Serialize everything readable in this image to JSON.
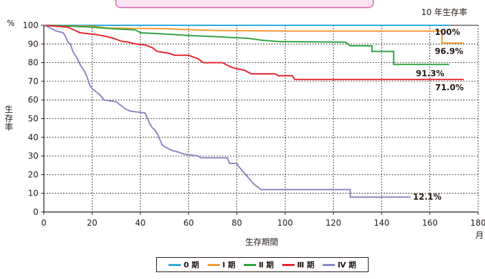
{
  "chart_data": {
    "type": "line",
    "title": "10 年生存率",
    "xlabel": "生存期間",
    "x_unit": "月",
    "ylabel": "生存率",
    "y_unit": "%",
    "xlim": [
      0,
      180
    ],
    "ylim": [
      0,
      100
    ],
    "x_ticks": [
      "0",
      "20",
      "40",
      "60",
      "80",
      "100",
      "120",
      "140",
      "160",
      "180"
    ],
    "y_ticks": [
      "0",
      "10",
      "20",
      "30",
      "40",
      "50",
      "60",
      "70",
      "80",
      "90",
      "100"
    ],
    "grid": true,
    "legend_position": "bottom",
    "series": [
      {
        "name": "0 期",
        "color": "#29a9e0",
        "end_label": "100%",
        "points": [
          [
            0,
            100
          ],
          [
            168,
            100
          ]
        ]
      },
      {
        "name": "Ⅰ 期",
        "color": "#f39a30",
        "end_label": "96.9%",
        "points": [
          [
            0,
            100
          ],
          [
            20,
            99.5
          ],
          [
            27,
            98.5
          ],
          [
            50,
            98.2
          ],
          [
            62,
            97.6
          ],
          [
            72,
            97.2
          ],
          [
            102,
            96.9
          ],
          [
            165,
            96.9
          ],
          [
            165,
            90.5
          ],
          [
            174,
            90.5
          ]
        ]
      },
      {
        "name": "Ⅱ 期",
        "color": "#2ca440",
        "end_label": "91.3%",
        "points": [
          [
            0,
            100
          ],
          [
            12,
            99.5
          ],
          [
            20,
            99
          ],
          [
            25,
            98.5
          ],
          [
            31,
            98
          ],
          [
            38,
            97.5
          ],
          [
            40,
            96
          ],
          [
            55,
            95
          ],
          [
            60,
            94.5
          ],
          [
            70,
            94
          ],
          [
            85,
            93
          ],
          [
            90,
            92
          ],
          [
            97,
            91.3
          ],
          [
            125,
            91
          ],
          [
            127,
            89
          ],
          [
            136,
            89
          ],
          [
            136,
            86
          ],
          [
            145,
            86
          ],
          [
            145,
            79
          ],
          [
            168,
            79
          ]
        ]
      },
      {
        "name": "Ⅲ 期",
        "color": "#e6242c",
        "end_label": "71.0%",
        "points": [
          [
            0,
            100
          ],
          [
            10,
            99
          ],
          [
            15,
            96
          ],
          [
            22,
            95
          ],
          [
            26,
            94
          ],
          [
            29,
            93
          ],
          [
            32,
            91.5
          ],
          [
            35,
            91
          ],
          [
            38,
            90
          ],
          [
            42,
            89.5
          ],
          [
            45,
            88
          ],
          [
            47,
            86
          ],
          [
            52,
            85
          ],
          [
            54,
            84
          ],
          [
            60,
            84
          ],
          [
            64,
            82
          ],
          [
            66,
            80
          ],
          [
            74,
            80
          ],
          [
            77,
            78
          ],
          [
            79,
            77
          ],
          [
            83,
            76
          ],
          [
            86,
            74
          ],
          [
            96,
            74
          ],
          [
            97,
            73
          ],
          [
            103,
            73
          ],
          [
            104,
            71
          ],
          [
            174,
            71
          ]
        ]
      },
      {
        "name": "Ⅳ 期",
        "color": "#8a86c2",
        "end_label": "12.1%",
        "points": [
          [
            0,
            100
          ],
          [
            2,
            99
          ],
          [
            5,
            97
          ],
          [
            8,
            96
          ],
          [
            9,
            94
          ],
          [
            10,
            91
          ],
          [
            11,
            90
          ],
          [
            12,
            86
          ],
          [
            14,
            82
          ],
          [
            15,
            79
          ],
          [
            16,
            77
          ],
          [
            17,
            75
          ],
          [
            18,
            72
          ],
          [
            19,
            68
          ],
          [
            20,
            66
          ],
          [
            21,
            65
          ],
          [
            23,
            63
          ],
          [
            25,
            60
          ],
          [
            30,
            59
          ],
          [
            32,
            57
          ],
          [
            34,
            55
          ],
          [
            36,
            54
          ],
          [
            42,
            53
          ],
          [
            43,
            50
          ],
          [
            44,
            47
          ],
          [
            45,
            45
          ],
          [
            46,
            44
          ],
          [
            47,
            42
          ],
          [
            48,
            39
          ],
          [
            49,
            36
          ],
          [
            50,
            35
          ],
          [
            53,
            33
          ],
          [
            56,
            32
          ],
          [
            58,
            31
          ],
          [
            64,
            30
          ],
          [
            65,
            29
          ],
          [
            76,
            29
          ],
          [
            77,
            26
          ],
          [
            80,
            26
          ],
          [
            81,
            24
          ],
          [
            83,
            21
          ],
          [
            85,
            18
          ],
          [
            87,
            15
          ],
          [
            90,
            12
          ],
          [
            127,
            12
          ],
          [
            127,
            8
          ],
          [
            152,
            8
          ]
        ]
      }
    ]
  }
}
